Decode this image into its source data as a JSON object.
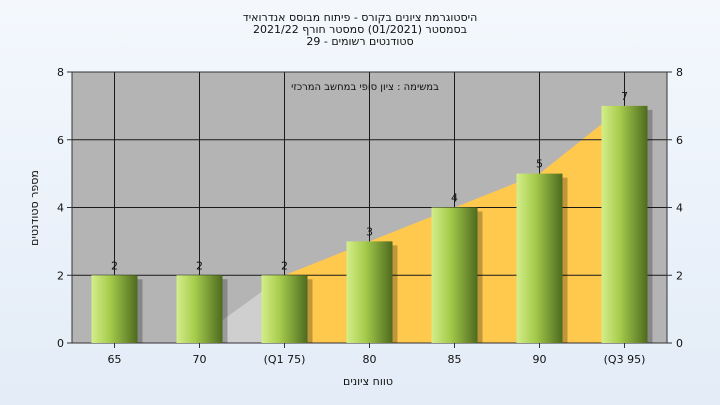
{
  "chart_data": {
    "type": "bar",
    "title_lines": [
      "היסטוגרמת ציונים בקורס - פיתוח מבוסס אנדרואיד",
      "בסמסטר (01/2021) סמסטר חורף 2021/22",
      "סטודנטים רשומים - 29"
    ],
    "annotation": "במשימה : ציון סופי במחשב המרכזי",
    "xlabel": "טווח ציונים",
    "ylabel": "מספר סטודנטים",
    "categories": [
      "65",
      "70",
      "(Q1 75)",
      "80",
      "85",
      "90",
      "(Q3 95)"
    ],
    "values": [
      2,
      2,
      2,
      3,
      4,
      5,
      7
    ],
    "data_labels": [
      "2",
      "2",
      "2",
      "3",
      "4",
      "5",
      "7"
    ],
    "ylim": [
      0,
      8
    ],
    "yticks": [
      0,
      2,
      4,
      6,
      8
    ],
    "ytick_labels": [
      "0",
      "2",
      "4",
      "6",
      "8"
    ],
    "grid": true,
    "area_start_category": "(Q1 75)",
    "colors": {
      "plot_bg": "#b4b4b4",
      "bar_light": "#d4ee8a",
      "bar_mid": "#a6cc4c",
      "bar_dark": "#4d6a1e",
      "area": "#ffc94d",
      "area_lead": "#cfcfcf",
      "grid": "#1a1a1a"
    }
  }
}
